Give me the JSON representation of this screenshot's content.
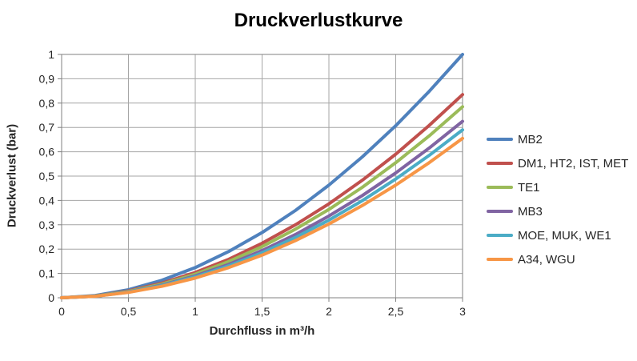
{
  "chart_data": {
    "type": "line",
    "title": "Druckverlustkurve",
    "xlabel": "Durchfluss in m³/h",
    "ylabel": "Druckverlust (bar)",
    "xlim": [
      0,
      3
    ],
    "ylim": [
      0,
      1
    ],
    "grid": true,
    "legend_position": "right",
    "xtick_values": [
      0,
      0.5,
      1,
      1.5,
      2,
      2.5,
      3
    ],
    "xtick_labels": [
      "0",
      "0,5",
      "1",
      "1,5",
      "2",
      "2,5",
      "3"
    ],
    "ytick_values": [
      0,
      0.1,
      0.2,
      0.3,
      0.4,
      0.5,
      0.6,
      0.7,
      0.8,
      0.9,
      1
    ],
    "ytick_labels": [
      "0",
      "0,1",
      "0,2",
      "0,3",
      "0,4",
      "0,5",
      "0,6",
      "0,7",
      "0,8",
      "0,9",
      "1"
    ],
    "x": [
      0,
      0.25,
      0.5,
      0.75,
      1,
      1.25,
      1.5,
      1.75,
      2,
      2.25,
      2.5,
      2.75,
      3
    ],
    "series": [
      {
        "name": "MB2",
        "color": "#4F81BD",
        "values": [
          0,
          0.009,
          0.033,
          0.072,
          0.124,
          0.19,
          0.268,
          0.359,
          0.463,
          0.579,
          0.707,
          0.848,
          1.0
        ]
      },
      {
        "name": "DM1, HT2, IST, MET",
        "color": "#C0504D",
        "values": [
          0,
          0.007,
          0.028,
          0.06,
          0.104,
          0.158,
          0.224,
          0.3,
          0.386,
          0.483,
          0.59,
          0.708,
          0.835
        ]
      },
      {
        "name": "TE1",
        "color": "#9BBB59",
        "values": [
          0,
          0.007,
          0.026,
          0.056,
          0.097,
          0.149,
          0.21,
          0.282,
          0.363,
          0.454,
          0.555,
          0.665,
          0.785
        ]
      },
      {
        "name": "MB3",
        "color": "#8064A2",
        "values": [
          0,
          0.006,
          0.024,
          0.052,
          0.09,
          0.137,
          0.194,
          0.26,
          0.336,
          0.42,
          0.513,
          0.615,
          0.725
        ]
      },
      {
        "name": "MOE, MUK, WE1",
        "color": "#4BACC6",
        "values": [
          0,
          0.006,
          0.023,
          0.05,
          0.086,
          0.131,
          0.185,
          0.248,
          0.319,
          0.399,
          0.488,
          0.585,
          0.69
        ]
      },
      {
        "name": "A34, WGU",
        "color": "#F79646",
        "values": [
          0,
          0.006,
          0.022,
          0.047,
          0.081,
          0.124,
          0.175,
          0.235,
          0.303,
          0.379,
          0.463,
          0.555,
          0.655
        ]
      }
    ]
  },
  "colors": {
    "background": "#ffffff",
    "gridline": "#A6A6A6",
    "axis_border": "#808080",
    "tick_text": "#262626",
    "title_text": "#000000"
  }
}
